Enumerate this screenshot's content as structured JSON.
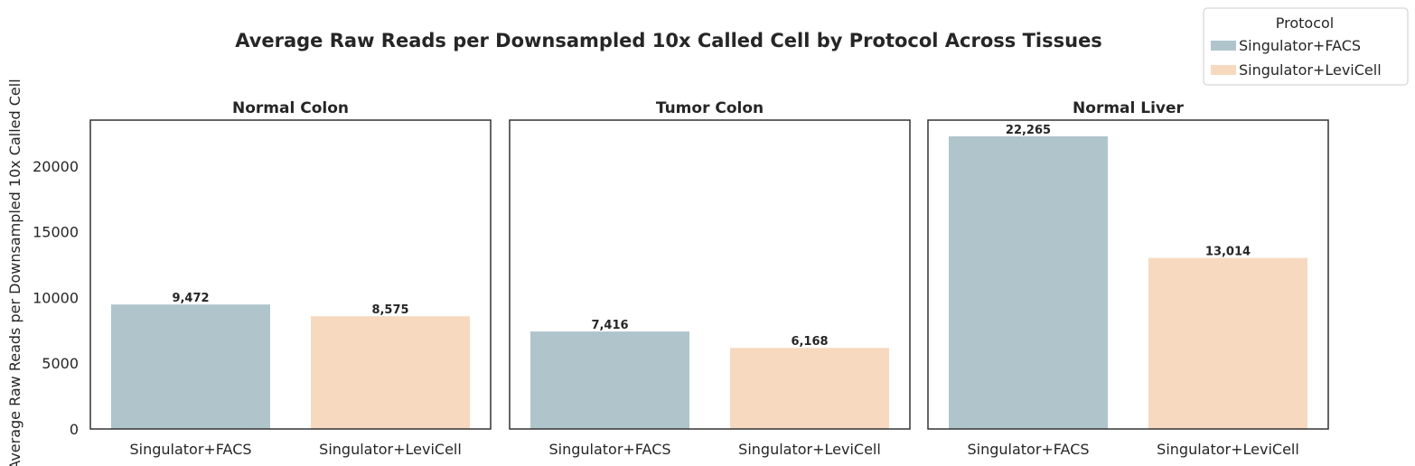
{
  "chart_data": {
    "type": "bar",
    "title": "Average Raw Reads per Downsampled 10x Called Cell by Protocol Across Tissues",
    "ylabel": "Average Raw Reads per Downsampled 10x Called Cell",
    "ylim": [
      0,
      23500
    ],
    "yticks": [
      "0",
      "5000",
      "10000",
      "15000",
      "20000"
    ],
    "yticks_values": [
      0,
      5000,
      10000,
      15000,
      20000
    ],
    "categories": [
      "Singulator+FACS",
      "Singulator+LeviCell"
    ],
    "colors": [
      "#b0c4cc",
      "#f6d9bf"
    ],
    "legend": {
      "title": "Protocol",
      "placement": "top-right",
      "entries": [
        "Singulator+FACS",
        "Singulator+LeviCell"
      ]
    },
    "grid": false,
    "panels": [
      {
        "title": "Normal Colon",
        "values": [
          9472,
          8575
        ],
        "labels": [
          "9,472",
          "8,575"
        ]
      },
      {
        "title": "Tumor Colon",
        "values": [
          7416,
          6168
        ],
        "labels": [
          "7,416",
          "6,168"
        ]
      },
      {
        "title": "Normal Liver",
        "values": [
          22265,
          13014
        ],
        "labels": [
          "22,265",
          "13,014"
        ]
      }
    ]
  }
}
